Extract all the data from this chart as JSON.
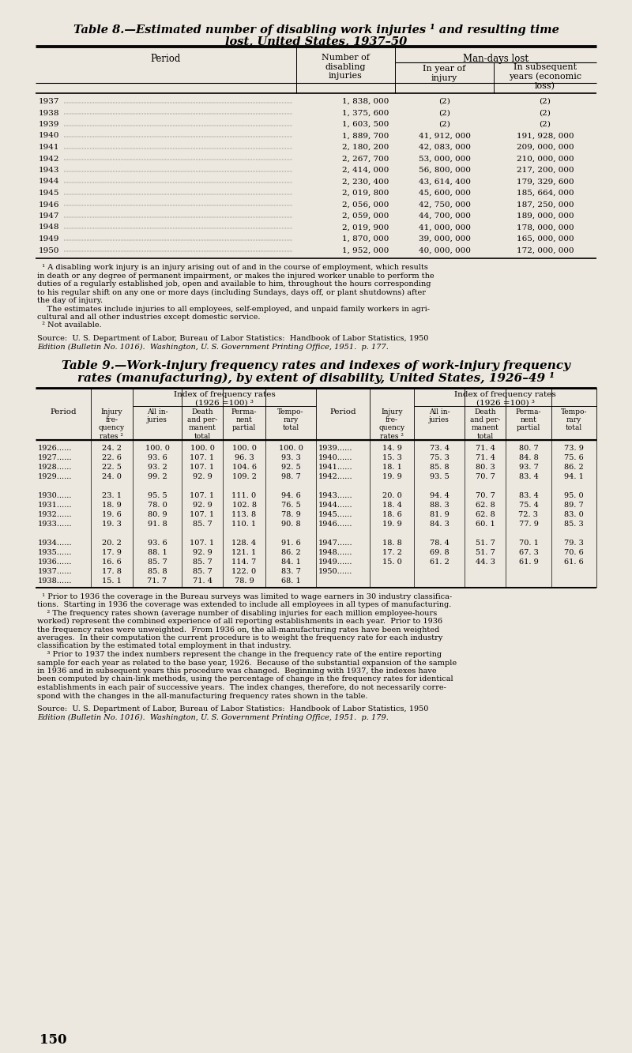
{
  "bg_color": "#ede8df",
  "text_color": "#000000",
  "page_num": "150",
  "table8_rows": [
    [
      "1937",
      "1, 838, 000",
      "(2)",
      "(2)"
    ],
    [
      "1938",
      "1, 375, 600",
      "(2)",
      "(2)"
    ],
    [
      "1939",
      "1, 603, 500",
      "(2)",
      "(2)"
    ],
    [
      "1940",
      "1, 889, 700",
      "41, 912, 000",
      "191, 928, 000"
    ],
    [
      "1941",
      "2, 180, 200",
      "42, 083, 000",
      "209, 000, 000"
    ],
    [
      "1942",
      "2, 267, 700",
      "53, 000, 000",
      "210, 000, 000"
    ],
    [
      "1943",
      "2, 414, 000",
      "56, 800, 000",
      "217, 200, 000"
    ],
    [
      "1944",
      "2, 230, 400",
      "43, 614, 400",
      "179, 329, 600"
    ],
    [
      "1945",
      "2, 019, 800",
      "45, 600, 000",
      "185, 664, 000"
    ],
    [
      "1946",
      "2, 056, 000",
      "42, 750, 000",
      "187, 250, 000"
    ],
    [
      "1947",
      "2, 059, 000",
      "44, 700, 000",
      "189, 000, 000"
    ],
    [
      "1948",
      "2, 019, 900",
      "41, 000, 000",
      "178, 000, 000"
    ],
    [
      "1949",
      "1, 870, 000",
      "39, 000, 000",
      "165, 000, 000"
    ],
    [
      "1950",
      "1, 952, 000",
      "40, 000, 000",
      "172, 000, 000"
    ]
  ],
  "table9_rows_left": [
    [
      "1926......",
      "24. 2",
      "100. 0",
      "100. 0",
      "100. 0",
      "100. 0"
    ],
    [
      "1927......",
      "22. 6",
      "93. 6",
      "107. 1",
      "96. 3",
      "93. 3"
    ],
    [
      "1928......",
      "22. 5",
      "93. 2",
      "107. 1",
      "104. 6",
      "92. 5"
    ],
    [
      "1929......",
      "24. 0",
      "99. 2",
      "92. 9",
      "109. 2",
      "98. 7"
    ],
    [
      "",
      "",
      "",
      "",
      "",
      ""
    ],
    [
      "1930......",
      "23. 1",
      "95. 5",
      "107. 1",
      "111. 0",
      "94. 6"
    ],
    [
      "1931......",
      "18. 9",
      "78. 0",
      "92. 9",
      "102. 8",
      "76. 5"
    ],
    [
      "1932......",
      "19. 6",
      "80. 9",
      "107. 1",
      "113. 8",
      "78. 9"
    ],
    [
      "1933......",
      "19. 3",
      "91. 8",
      "85. 7",
      "110. 1",
      "90. 8"
    ],
    [
      "",
      "",
      "",
      "",
      "",
      ""
    ],
    [
      "1934......",
      "20. 2",
      "93. 6",
      "107. 1",
      "128. 4",
      "91. 6"
    ],
    [
      "1935......",
      "17. 9",
      "88. 1",
      "92. 9",
      "121. 1",
      "86. 2"
    ],
    [
      "1936......",
      "16. 6",
      "85. 7",
      "85. 7",
      "114. 7",
      "84. 1"
    ],
    [
      "1937......",
      "17. 8",
      "85. 8",
      "85. 7",
      "122. 0",
      "83. 7"
    ],
    [
      "1938......",
      "15. 1",
      "71. 7",
      "71. 4",
      "78. 9",
      "68. 1"
    ]
  ],
  "table9_rows_right": [
    [
      "1939......",
      "14. 9",
      "73. 4",
      "71. 4",
      "80. 7",
      "73. 9"
    ],
    [
      "1940......",
      "15. 3",
      "75. 3",
      "71. 4",
      "84. 8",
      "75. 6"
    ],
    [
      "1941......",
      "18. 1",
      "85. 8",
      "80. 3",
      "93. 7",
      "86. 2"
    ],
    [
      "1942......",
      "19. 9",
      "93. 5",
      "70. 7",
      "83. 4",
      "94. 1"
    ],
    [
      "",
      "",
      "",
      "",
      "",
      ""
    ],
    [
      "1943......",
      "20. 0",
      "94. 4",
      "70. 7",
      "83. 4",
      "95. 0"
    ],
    [
      "1944......",
      "18. 4",
      "88. 3",
      "62. 8",
      "75. 4",
      "89. 7"
    ],
    [
      "1945......",
      "18. 6",
      "81. 9",
      "62. 8",
      "72. 3",
      "83. 0"
    ],
    [
      "1946......",
      "19. 9",
      "84. 3",
      "60. 1",
      "77. 9",
      "85. 3"
    ],
    [
      "",
      "",
      "",
      "",
      "",
      ""
    ],
    [
      "1947......",
      "18. 8",
      "78. 4",
      "51. 7",
      "70. 1",
      "79. 3"
    ],
    [
      "1948......",
      "17. 2",
      "69. 8",
      "51. 7",
      "67. 3",
      "70. 6"
    ],
    [
      "1949......",
      "15. 0",
      "61. 2",
      "44. 3",
      "61. 9",
      "61. 6"
    ],
    [
      "1950......",
      "",
      "",
      "",
      "",
      ""
    ],
    [
      "",
      "",
      "",
      "",
      "",
      ""
    ]
  ],
  "table8_fn_lines": [
    "  ¹ A disabling work injury is an injury arising out of and in the course of employment, which results",
    "in death or any degree of permanent impairment, or makes the injured worker unable to perform the",
    "duties of a regularly established job, open and available to him, throughout the hours corresponding",
    "to his regular shift on any one or more days (including Sundays, days off, or plant shutdowns) after",
    "the day of injury.",
    "    The estimates include injuries to all employees, self-employed, and unpaid family workers in agri-",
    "cultural and all other industries except domestic service.",
    "  ² Not available."
  ],
  "table8_src_lines": [
    "Source:  U. S. Department of Labor, Bureau of Labor Statistics:  Handbook of Labor Statistics, 1950",
    "Edition (Bulletin No. 1016).  Washington, U. S. Government Printing Office, 1951.  p. 177."
  ],
  "table9_fn_lines": [
    "  ¹ Prior to 1936 the coverage in the Bureau surveys was limited to wage earners in 30 industry classifica-",
    "tions.  Starting in 1936 the coverage was extended to include all employees in all types of manufacturing.",
    "    ² The frequency rates shown (average number of disabling injuries for each million employee-hours",
    "worked) represent the combined experience of all reporting establishments in each year.  Prior to 1936",
    "the frequency rates were unweighted.  From 1936 on, the all-manufacturing rates have been weighted",
    "averages.  In their computation the current procedure is to weight the frequency rate for each industry",
    "classification by the estimated total employment in that industry.",
    "    ³ Prior to 1937 the index numbers represent the change in the frequency rate of the entire reporting",
    "sample for each year as related to the base year, 1926.  Because of the substantial expansion of the sample",
    "in 1936 and in subsequent years this procedure was changed.  Beginning with 1937, the indexes have",
    "been computed by chain-link methods, using the percentage of change in the frequency rates for identical",
    "establishments in each pair of successive years.  The index changes, therefore, do not necessarily corre-",
    "spond with the changes in the all-manufacturing frequency rates shown in the table."
  ],
  "table9_src_lines": [
    "Source:  U. S. Department of Labor, Bureau of Labor Statistics:  Handbook of Labor Statistics, 1950",
    "Edition (Bulletin No. 1016).  Washington, U. S. Government Printing Office, 1951.  p. 179."
  ]
}
